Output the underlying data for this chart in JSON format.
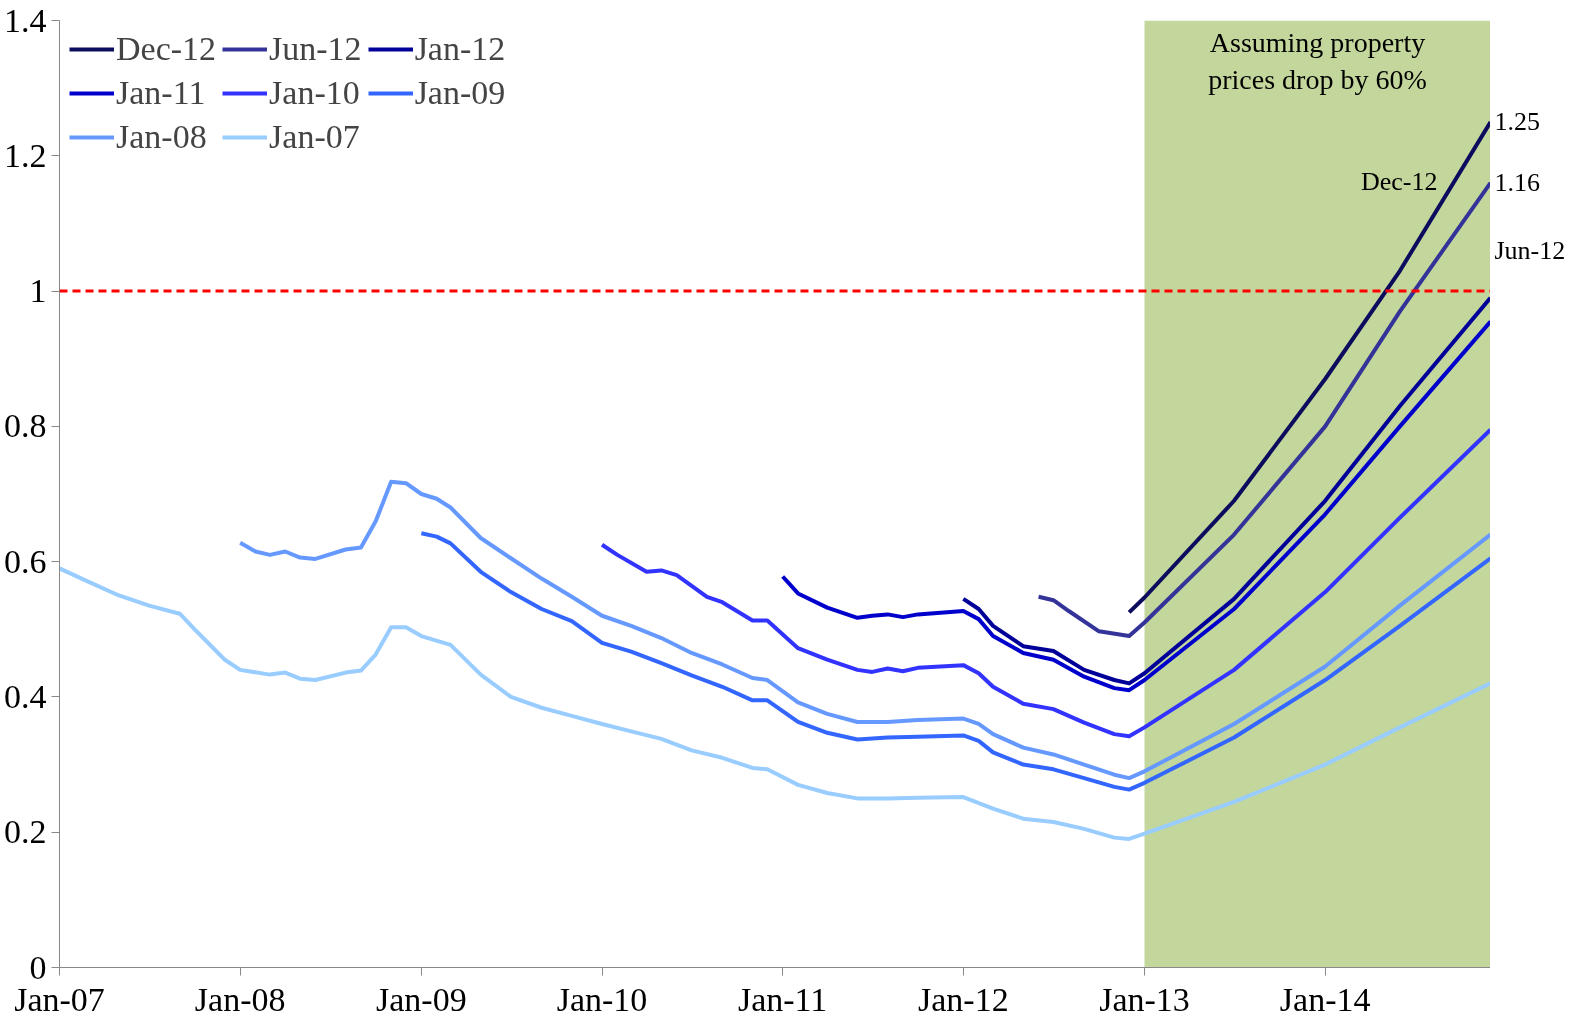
{
  "chart_data": {
    "type": "line",
    "xlim": [
      "2007-01",
      "2014-12"
    ],
    "ylim": [
      0,
      1.4
    ],
    "xticks": [
      {
        "value": "2007-01",
        "label": "Jan-07"
      },
      {
        "value": "2008-01",
        "label": "Jan-08"
      },
      {
        "value": "2009-01",
        "label": "Jan-09"
      },
      {
        "value": "2010-01",
        "label": "Jan-10"
      },
      {
        "value": "2011-01",
        "label": "Jan-11"
      },
      {
        "value": "2012-01",
        "label": "Jan-12"
      },
      {
        "value": "2013-01",
        "label": "Jan-13"
      },
      {
        "value": "2014-01",
        "label": "Jan-14"
      }
    ],
    "yticks": [
      0,
      0.2,
      0.4,
      0.6,
      0.8,
      1,
      1.2,
      1.4
    ],
    "grid": false,
    "legend": "top left",
    "marker": "none",
    "line_style": "solid",
    "bands": [
      {
        "axis": "x",
        "from": "2013-01",
        "to": "2014-12",
        "label": "Assuming property\nprices drop by 60%",
        "color": "#c3d69b"
      }
    ],
    "ref_lines": [
      {
        "axis": "y",
        "value": 1,
        "color": "#ff0000",
        "line_style": "dashed"
      }
    ],
    "annotations": [
      {
        "text": "1.25",
        "x": "2014-12",
        "y": 1.25
      },
      {
        "text": "1.16",
        "x": "2014-12",
        "y": 1.16
      },
      {
        "text": "Dec-12",
        "x": "2014-09",
        "y": 1.14
      },
      {
        "text": "Jun-12",
        "x": "2014-12",
        "y": 1.06
      }
    ],
    "series": [
      {
        "name": "Dec-12",
        "color": "#0c0c5e",
        "x": [
          "2012-12",
          "2013-01",
          "2013-07",
          "2014-01",
          "2014-06",
          "2014-12"
        ],
        "values": [
          0.525,
          0.547,
          0.69,
          0.87,
          1.03,
          1.25
        ]
      },
      {
        "name": "Jun-12",
        "color": "#333399",
        "x": [
          "2012-06",
          "2012-07",
          "2012-08",
          "2012-10",
          "2012-12",
          "2013-01",
          "2013-07",
          "2014-01",
          "2014-06",
          "2014-12"
        ],
        "values": [
          0.548,
          0.543,
          0.527,
          0.497,
          0.49,
          0.51,
          0.64,
          0.8,
          0.97,
          1.16
        ]
      },
      {
        "name": "Jan-12",
        "color": "#000099",
        "x": [
          "2012-01",
          "2012-02",
          "2012-03",
          "2012-05",
          "2012-07",
          "2012-09",
          "2012-11",
          "2012-12",
          "2013-01",
          "2013-07",
          "2014-01",
          "2014-06",
          "2014-12"
        ],
        "values": [
          0.545,
          0.53,
          0.505,
          0.475,
          0.468,
          0.44,
          0.425,
          0.42,
          0.435,
          0.545,
          0.69,
          0.83,
          0.99
        ]
      },
      {
        "name": "Jan-11",
        "color": "#0000cc",
        "x": [
          "2011-01",
          "2011-02",
          "2011-04",
          "2011-06",
          "2011-07",
          "2011-08",
          "2011-09",
          "2011-10",
          "2012-01",
          "2012-02",
          "2012-03",
          "2012-05",
          "2012-07",
          "2012-09",
          "2012-11",
          "2012-12",
          "2013-01",
          "2013-07",
          "2014-01",
          "2014-06",
          "2014-12"
        ],
        "values": [
          0.578,
          0.553,
          0.532,
          0.517,
          0.52,
          0.522,
          0.518,
          0.522,
          0.527,
          0.515,
          0.49,
          0.465,
          0.455,
          0.43,
          0.413,
          0.41,
          0.425,
          0.53,
          0.67,
          0.8,
          0.955
        ]
      },
      {
        "name": "Jan-10",
        "color": "#3333ff",
        "x": [
          "2010-01",
          "2010-02",
          "2010-04",
          "2010-05",
          "2010-06",
          "2010-08",
          "2010-09",
          "2010-11",
          "2010-12",
          "2011-02",
          "2011-04",
          "2011-06",
          "2011-07",
          "2011-08",
          "2011-09",
          "2011-10",
          "2012-01",
          "2012-02",
          "2012-03",
          "2012-05",
          "2012-07",
          "2012-09",
          "2012-11",
          "2012-12",
          "2013-01",
          "2013-07",
          "2014-01",
          "2014-06",
          "2014-12"
        ],
        "values": [
          0.625,
          0.61,
          0.585,
          0.587,
          0.58,
          0.548,
          0.54,
          0.513,
          0.513,
          0.472,
          0.455,
          0.44,
          0.437,
          0.442,
          0.438,
          0.443,
          0.447,
          0.435,
          0.415,
          0.39,
          0.382,
          0.362,
          0.345,
          0.342,
          0.355,
          0.44,
          0.555,
          0.665,
          0.795
        ]
      },
      {
        "name": "Jan-09",
        "color": "#3366ff",
        "x": [
          "2009-01",
          "2009-02",
          "2009-03",
          "2009-05",
          "2009-07",
          "2009-09",
          "2009-11",
          "2010-01",
          "2010-03",
          "2010-05",
          "2010-07",
          "2010-09",
          "2010-11",
          "2010-12",
          "2011-02",
          "2011-04",
          "2011-06",
          "2011-08",
          "2011-10",
          "2012-01",
          "2012-02",
          "2012-03",
          "2012-05",
          "2012-07",
          "2012-09",
          "2012-11",
          "2012-12",
          "2013-01",
          "2013-07",
          "2014-01",
          "2014-06",
          "2014-12"
        ],
        "values": [
          0.642,
          0.637,
          0.627,
          0.585,
          0.555,
          0.53,
          0.512,
          0.48,
          0.467,
          0.45,
          0.432,
          0.415,
          0.395,
          0.395,
          0.363,
          0.347,
          0.337,
          0.34,
          0.341,
          0.343,
          0.335,
          0.318,
          0.3,
          0.293,
          0.28,
          0.267,
          0.263,
          0.273,
          0.34,
          0.425,
          0.505,
          0.605
        ]
      },
      {
        "name": "Jan-08",
        "color": "#6699ff",
        "x": [
          "2008-01",
          "2008-02",
          "2008-03",
          "2008-04",
          "2008-05",
          "2008-06",
          "2008-08",
          "2008-09",
          "2008-10",
          "2008-11",
          "2008-12",
          "2009-01",
          "2009-02",
          "2009-03",
          "2009-05",
          "2009-07",
          "2009-09",
          "2009-11",
          "2010-01",
          "2010-03",
          "2010-05",
          "2010-07",
          "2010-09",
          "2010-11",
          "2010-12",
          "2011-02",
          "2011-04",
          "2011-06",
          "2011-08",
          "2011-10",
          "2012-01",
          "2012-02",
          "2012-03",
          "2012-05",
          "2012-07",
          "2012-09",
          "2012-11",
          "2012-12",
          "2013-01",
          "2013-07",
          "2014-01",
          "2014-06",
          "2014-12"
        ],
        "values": [
          0.628,
          0.615,
          0.61,
          0.615,
          0.606,
          0.604,
          0.618,
          0.621,
          0.66,
          0.718,
          0.716,
          0.7,
          0.693,
          0.68,
          0.635,
          0.605,
          0.575,
          0.548,
          0.52,
          0.505,
          0.487,
          0.465,
          0.448,
          0.428,
          0.425,
          0.392,
          0.375,
          0.363,
          0.363,
          0.366,
          0.368,
          0.36,
          0.345,
          0.325,
          0.315,
          0.3,
          0.285,
          0.28,
          0.29,
          0.36,
          0.445,
          0.535,
          0.64
        ]
      },
      {
        "name": "Jan-07",
        "color": "#99ccff",
        "x": [
          "2007-01",
          "2007-03",
          "2007-05",
          "2007-07",
          "2007-09",
          "2007-10",
          "2007-12",
          "2008-01",
          "2008-03",
          "2008-04",
          "2008-05",
          "2008-06",
          "2008-08",
          "2008-09",
          "2008-10",
          "2008-11",
          "2008-12",
          "2009-01",
          "2009-03",
          "2009-05",
          "2009-07",
          "2009-09",
          "2009-11",
          "2010-01",
          "2010-03",
          "2010-05",
          "2010-07",
          "2010-09",
          "2010-11",
          "2010-12",
          "2011-02",
          "2011-04",
          "2011-06",
          "2011-08",
          "2011-10",
          "2012-01",
          "2012-03",
          "2012-05",
          "2012-07",
          "2012-09",
          "2012-11",
          "2012-12",
          "2013-01",
          "2013-07",
          "2014-01",
          "2014-06",
          "2014-12"
        ],
        "values": [
          0.59,
          0.57,
          0.55,
          0.535,
          0.523,
          0.5,
          0.455,
          0.44,
          0.433,
          0.436,
          0.427,
          0.425,
          0.436,
          0.439,
          0.463,
          0.503,
          0.503,
          0.49,
          0.477,
          0.433,
          0.4,
          0.384,
          0.372,
          0.36,
          0.349,
          0.338,
          0.321,
          0.31,
          0.295,
          0.293,
          0.27,
          0.258,
          0.25,
          0.25,
          0.251,
          0.252,
          0.235,
          0.22,
          0.215,
          0.205,
          0.192,
          0.19,
          0.198,
          0.245,
          0.3,
          0.355,
          0.42
        ]
      }
    ]
  }
}
